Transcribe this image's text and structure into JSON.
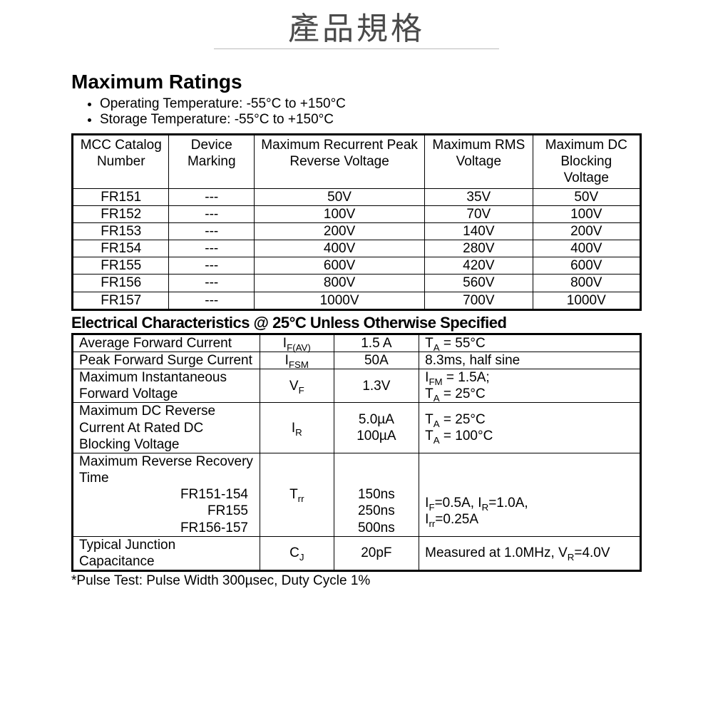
{
  "title": "產品規格",
  "maxRatings": {
    "heading": "Maximum Ratings",
    "bullets": [
      "Operating Temperature: -55°C to +150°C",
      "Storage Temperature: -55°C to +150°C"
    ],
    "columns": [
      "MCC Catalog Number",
      "Device Marking",
      "Maximum Recurrent Peak Reverse Voltage",
      "Maximum RMS Voltage",
      "Maximum DC Blocking Voltage"
    ],
    "colWidths": [
      "17%",
      "15%",
      "30%",
      "19%",
      "19%"
    ],
    "rows": [
      [
        "FR151",
        "---",
        "50V",
        "35V",
        "50V"
      ],
      [
        "FR152",
        "---",
        "100V",
        "70V",
        "100V"
      ],
      [
        "FR153",
        "---",
        "200V",
        "140V",
        "200V"
      ],
      [
        "FR154",
        "---",
        "400V",
        "280V",
        "400V"
      ],
      [
        "FR155",
        "---",
        "600V",
        "420V",
        "600V"
      ],
      [
        "FR156",
        "---",
        "800V",
        "560V",
        "800V"
      ],
      [
        "FR157",
        "---",
        "1000V",
        "700V",
        "1000V"
      ]
    ]
  },
  "elec": {
    "heading": "Electrical Characteristics @ 25°C Unless Otherwise Specified",
    "colWidths": [
      "33%",
      "13%",
      "15%",
      "39%"
    ],
    "rows": [
      {
        "param": "Average Forward Current",
        "symbol_html": "I<sub>F(AV)</sub>",
        "value": "1.5 A",
        "cond_html": "T<sub>A</sub> = 55°C"
      },
      {
        "param": "Peak Forward Surge Current",
        "symbol_html": "I<sub>FSM</sub>",
        "value": "50A",
        "cond_html": "8.3ms, half sine"
      },
      {
        "param": "Maximum Instantaneous Forward Voltage",
        "symbol_html": "V<sub>F</sub>",
        "value": "1.3V",
        "cond_html": "I<sub>FM</sub> = 1.5A;<br>T<sub>A</sub> = 25°C"
      },
      {
        "param": "Maximum DC Reverse Current At Rated DC Blocking Voltage",
        "symbol_html": "I<sub>R</sub>",
        "value_html": "5.0µA<br>100µA",
        "cond_html": "T<sub>A</sub> = 25°C<br>T<sub>A</sub> = 100°C"
      },
      {
        "param_html": "Maximum Reverse Recovery Time<br><span class='indent-r'>FR151-154</span><span class='indent-r'>FR155</span><span class='indent-r'>FR156-157</span>",
        "symbol_html": "T<sub>rr</sub>",
        "value_html": "<br><br>150ns<br>250ns<br>500ns",
        "cond_html": "<br><br>I<sub>F</sub>=0.5A, I<sub>R</sub>=1.0A,<br>I<sub>rr</sub>=0.25A"
      },
      {
        "param": "Typical Junction Capacitance",
        "symbol_html": "C<sub>J</sub>",
        "value": "20pF",
        "cond_html": "Measured at 1.0MHz, V<sub>R</sub>=4.0V"
      }
    ],
    "footnote": "*Pulse Test: Pulse Width 300µsec, Duty Cycle 1%"
  }
}
